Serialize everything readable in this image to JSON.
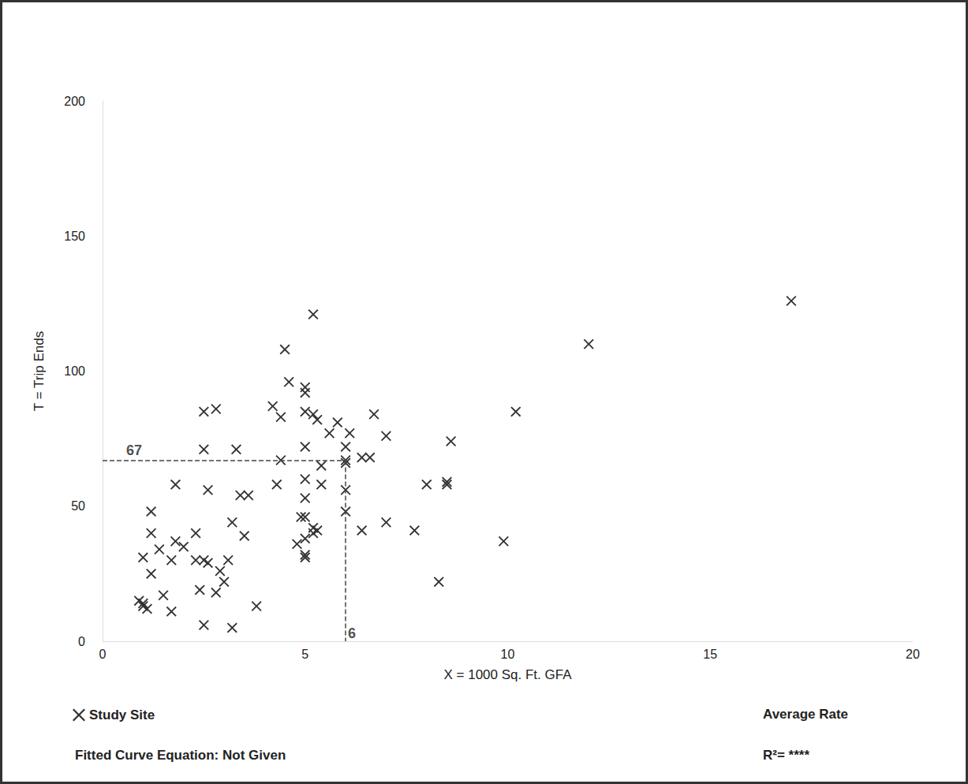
{
  "chart_data": {
    "type": "scatter",
    "x_label": "X = 1000 Sq. Ft. GFA",
    "y_label": "T = Trip Ends",
    "xlim": [
      0,
      20
    ],
    "ylim": [
      0,
      200
    ],
    "xticks": [
      0,
      5,
      10,
      15,
      20
    ],
    "yticks": [
      0,
      50,
      100,
      150,
      200
    ],
    "grid": false,
    "legend": "bottom-left",
    "series": [
      {
        "name": "Study Site",
        "color": "#333333",
        "marker": "x",
        "x": [
          17.0,
          12.0,
          10.2,
          9.9,
          8.3,
          8.6,
          8.5,
          8.5,
          8.0,
          7.7,
          7.0,
          7.0,
          6.7,
          6.6,
          6.4,
          6.4,
          6.1,
          6.0,
          6.0,
          6.0,
          6.0,
          6.0,
          5.8,
          5.6,
          5.4,
          5.4,
          5.3,
          5.2,
          5.2,
          5.0,
          5.0,
          5.0,
          5.0,
          5.0,
          5.0,
          5.0,
          5.0,
          5.0,
          5.0,
          4.9,
          5.2,
          5.3,
          5.2,
          4.8,
          4.6,
          4.5,
          4.4,
          4.4,
          4.3,
          4.2,
          3.6,
          3.4,
          3.5,
          3.8,
          3.3,
          3.2,
          3.1,
          3.0,
          3.2,
          2.8,
          2.5,
          2.5,
          2.6,
          2.5,
          2.6,
          2.3,
          2.3,
          2.4,
          2.8,
          2.9,
          2.5,
          1.8,
          1.8,
          2.0,
          1.7,
          1.7,
          1.5,
          1.4,
          1.2,
          1.2,
          1.2,
          1.0,
          0.9,
          1.0,
          1.1,
          1.0
        ],
        "values": [
          126,
          110,
          85,
          37,
          22,
          74,
          59,
          58,
          58,
          41,
          44,
          76,
          84,
          68,
          68,
          41,
          77,
          72,
          67,
          66,
          56,
          48,
          81,
          77,
          65,
          58,
          82,
          84,
          121,
          85,
          94,
          92,
          72,
          60,
          53,
          46,
          38,
          32,
          31,
          46,
          42,
          41,
          40,
          36,
          96,
          108,
          83,
          67,
          58,
          87,
          54,
          54,
          39,
          13,
          71,
          44,
          30,
          22,
          5,
          86,
          85,
          71,
          56,
          30,
          29,
          40,
          30,
          19,
          18,
          26,
          6,
          58,
          37,
          35,
          30,
          11,
          17,
          34,
          48,
          40,
          25,
          31,
          15,
          14,
          12,
          13
        ]
      }
    ],
    "annotations": [
      {
        "text": "67",
        "x": 0,
        "y": 67
      },
      {
        "text": "6",
        "x": 6,
        "y": 0
      }
    ],
    "reference_lines": {
      "x": 6,
      "y": 67
    },
    "notes_left": [
      "Fitted Curve Equation: Not Given"
    ],
    "notes_right": [
      "Average Rate",
      "R²= ****"
    ]
  }
}
